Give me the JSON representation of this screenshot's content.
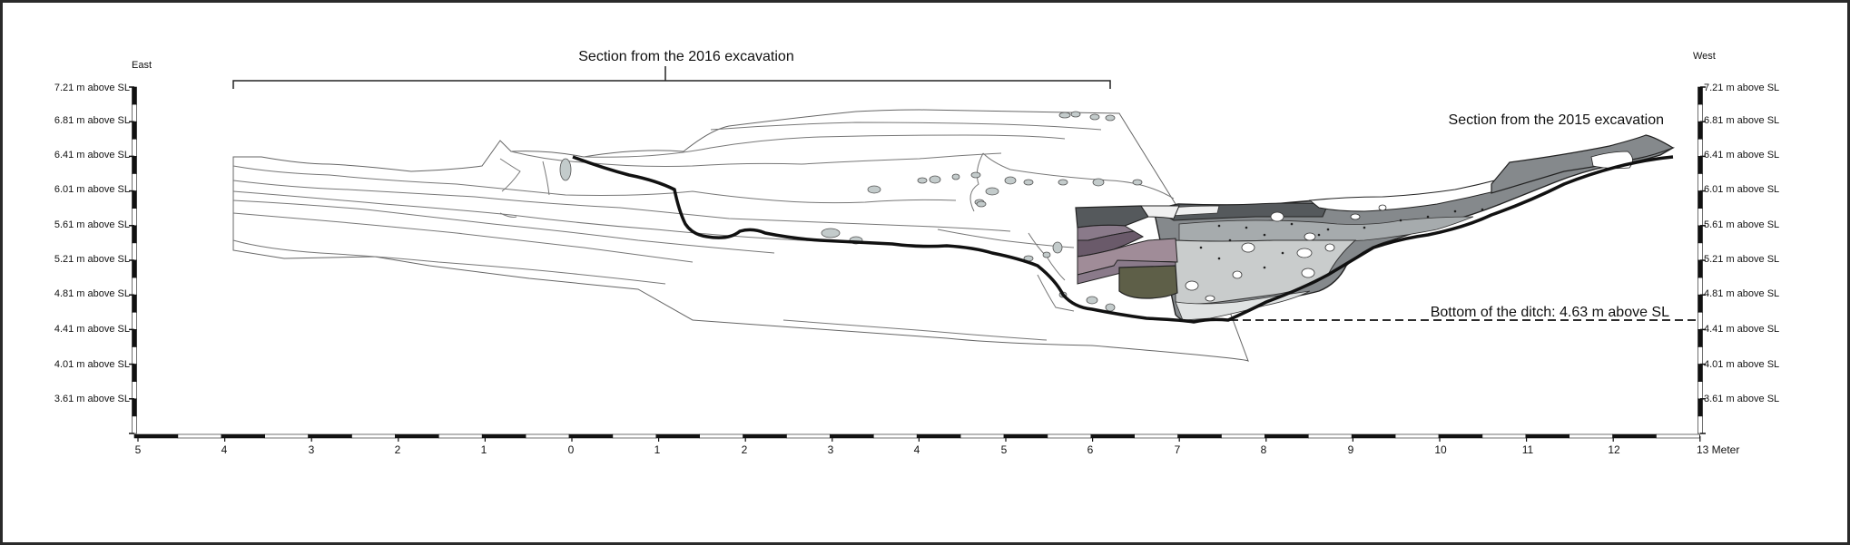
{
  "figure": {
    "left_axis_title": "East",
    "right_axis_title": "West",
    "elevation_labels": [
      "7.21 m above SL",
      "6.81 m above SL",
      "6.41 m above SL",
      "6.01 m above SL",
      "5.61 m above SL",
      "5.21 m above  SL",
      "4.81 m above SL",
      "4.41 m above SL",
      "4.01 m above SL",
      "3.61 m above SL"
    ],
    "meter_labels": [
      "5",
      "4",
      "3",
      "2",
      "1",
      "0",
      "1",
      "2",
      "3",
      "4",
      "5",
      "6",
      "7",
      "8",
      "9",
      "10",
      "11",
      "12",
      "13 Meter"
    ],
    "section_2016_label": "Section from the 2016 excavation",
    "section_2015_label": "Section from the 2015 excavation",
    "ditch_bottom_label": "Bottom of the ditch: 4.63 m above SL"
  },
  "colors": {
    "frame": "#2a2a2a",
    "dark_grey": "#55595c",
    "mid_grey": "#858a8d",
    "light_grey": "#c9cccc",
    "pale_grey": "#dfe2e2",
    "mauve_dark": "#6a5a6a",
    "mauve": "#8a7a8a",
    "mauve_light": "#a08c98",
    "olive": "#5e5f48",
    "stone": "#b4bebe"
  }
}
